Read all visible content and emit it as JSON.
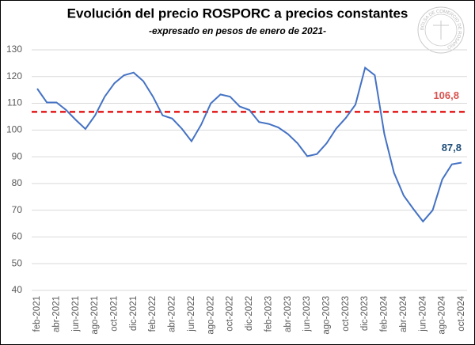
{
  "chart_data": {
    "type": "line",
    "title": "Evolución del precio ROSPORC a precios constantes",
    "subtitle": "-expresado en pesos de enero de 2021-",
    "logo_text": "BOLSA DE COMERCIO DE ROSARIO",
    "categories": [
      "feb-2021",
      null,
      "abr-2021",
      null,
      "jun-2021",
      null,
      "ago-2021",
      null,
      "oct-2021",
      null,
      "dic-2021",
      null,
      "feb-2022",
      null,
      "abr-2022",
      null,
      "jun-2022",
      null,
      "ago-2022",
      null,
      "oct-2022",
      null,
      "dic-2022",
      null,
      "feb-2023",
      null,
      "abr-2023",
      null,
      "jun-2023",
      null,
      "ago-2023",
      null,
      "oct-2023",
      null,
      "dic-2023",
      null,
      "feb-2024",
      null,
      "abr-2024",
      null,
      "jun-2024",
      null,
      "ago-2024",
      null,
      "oct-2024"
    ],
    "series": [
      {
        "name": "ROSPORC",
        "color": "#4472c4",
        "values": [
          115.5,
          110.3,
          110.3,
          107.5,
          103.8,
          100.4,
          105.5,
          112.5,
          117.5,
          120.5,
          121.5,
          118.3,
          112.5,
          105.5,
          104.3,
          100.5,
          95.8,
          102,
          110,
          113.3,
          112.5,
          108.8,
          107.5,
          103,
          102.3,
          101,
          98.5,
          95,
          90.2,
          91,
          95,
          100.5,
          104.5,
          109.5,
          123.3,
          120.5,
          98.5,
          84,
          75.5,
          70.5,
          65.8,
          70,
          81.5,
          87.2,
          87.8
        ],
        "value_labels": [
          null,
          null,
          null,
          null,
          null,
          null,
          null,
          null,
          null,
          null,
          null,
          null,
          null,
          null,
          null,
          null,
          null,
          null,
          null,
          null,
          null,
          null,
          null,
          null,
          null,
          null,
          null,
          null,
          null,
          null,
          null,
          null,
          null,
          null,
          null,
          null,
          null,
          null,
          null,
          null,
          null,
          null,
          null,
          null,
          "87,8"
        ]
      }
    ],
    "reference_line": {
      "value": 106.8,
      "label": "106,8",
      "color": "#e00000"
    },
    "ylim": [
      40,
      130
    ],
    "yticks": [
      40,
      50,
      60,
      70,
      80,
      90,
      100,
      110,
      120,
      130
    ],
    "grid": true
  }
}
